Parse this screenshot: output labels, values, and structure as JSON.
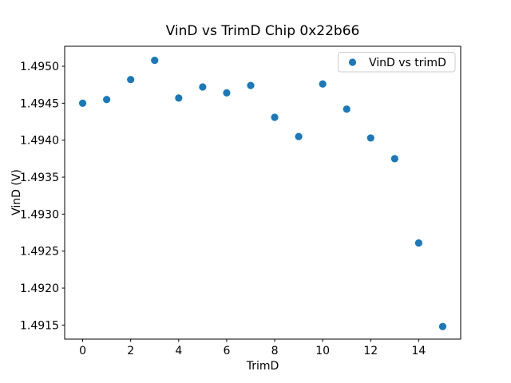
{
  "chart_data": {
    "type": "scatter",
    "title": "VinD vs TrimD Chip 0x22b66",
    "xlabel": "TrimD",
    "ylabel": "VinD (V)",
    "legend": {
      "label": "VinD vs trimD",
      "position": "upper right"
    },
    "marker_color": "#1f77b4",
    "axis_color": "#000000",
    "legend_border_color": "#cccccc",
    "grid": false,
    "x": [
      0,
      1,
      2,
      3,
      4,
      5,
      6,
      7,
      8,
      9,
      10,
      11,
      12,
      13,
      14,
      15
    ],
    "y": [
      1.4945,
      1.49455,
      1.49482,
      1.49508,
      1.49457,
      1.49472,
      1.49464,
      1.49474,
      1.49431,
      1.49405,
      1.49476,
      1.49442,
      1.49403,
      1.49375,
      1.49261,
      1.49148
    ],
    "xlim": [
      -0.75,
      15.75
    ],
    "ylim": [
      1.49131,
      1.49527
    ],
    "xticks": [
      0,
      2,
      4,
      6,
      8,
      10,
      12,
      14
    ],
    "yticks": [
      1.4915,
      1.492,
      1.4925,
      1.493,
      1.4935,
      1.494,
      1.4945,
      1.495
    ],
    "ytick_decimals": 4
  }
}
